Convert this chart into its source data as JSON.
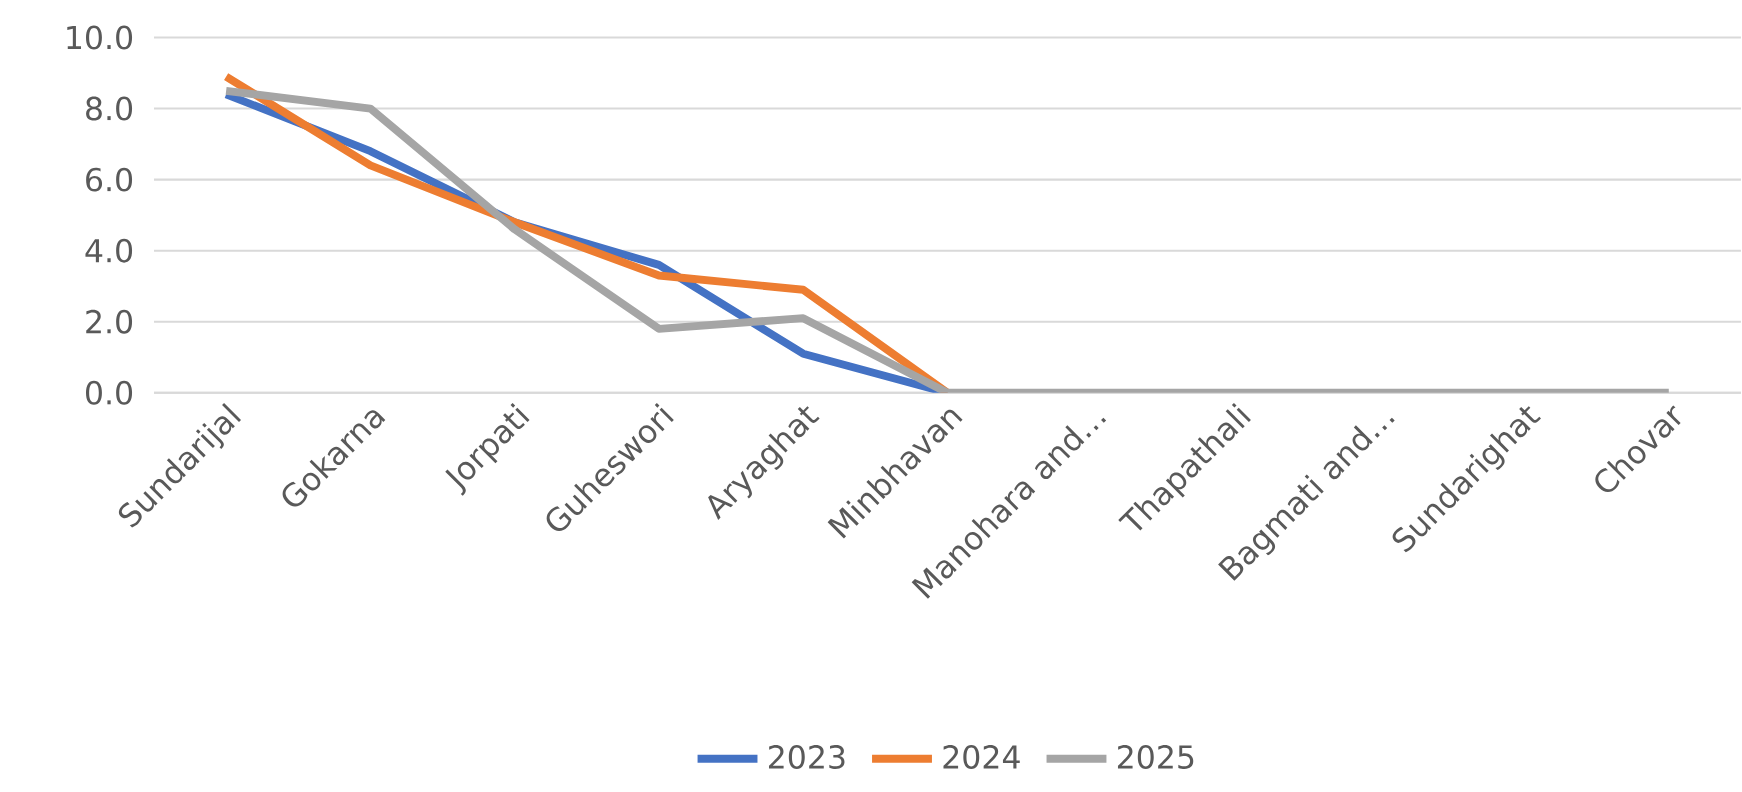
{
  "chart_data": {
    "type": "line",
    "categories": [
      "Sundarijal",
      "Gokarna",
      "Jorpati",
      "Guheswori",
      "Aryaghat",
      "Minbhavan",
      "Manohara and…",
      "Thapathali",
      "Bagmati and…",
      "Sundarighat",
      "Chovar"
    ],
    "series": [
      {
        "name": "2023",
        "color": "#4472c4",
        "values": [
          8.4,
          6.8,
          4.8,
          3.6,
          1.1,
          0,
          null,
          null,
          null,
          null,
          null
        ]
      },
      {
        "name": "2024",
        "color": "#ed7d31",
        "values": [
          8.9,
          6.4,
          4.8,
          3.3,
          2.9,
          0,
          null,
          null,
          null,
          null,
          null
        ]
      },
      {
        "name": "2025",
        "color": "#a5a5a5",
        "values": [
          8.5,
          8.0,
          4.6,
          1.8,
          2.1,
          0,
          0,
          0,
          0,
          0,
          0
        ]
      }
    ],
    "ylim": [
      0,
      10
    ],
    "yticks": [
      {
        "value": 0,
        "label": "0.0"
      },
      {
        "value": 2,
        "label": "2.0"
      },
      {
        "value": 4,
        "label": "4.0"
      },
      {
        "value": 6,
        "label": "6.0"
      },
      {
        "value": 8,
        "label": "8.0"
      },
      {
        "value": 10,
        "label": "10.0"
      }
    ],
    "grid": "y",
    "legend": "bottom",
    "marker": "none",
    "line_style": "solid"
  }
}
